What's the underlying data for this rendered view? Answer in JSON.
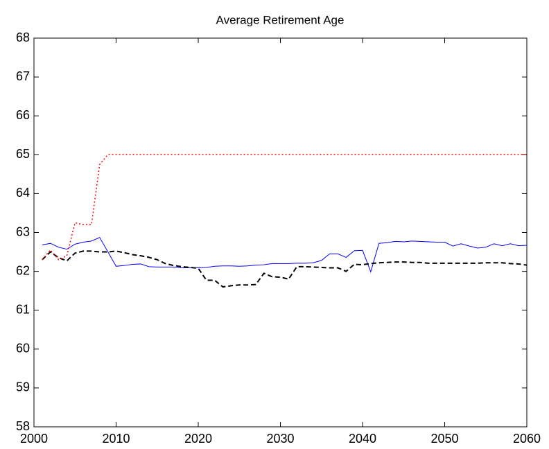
{
  "chart_data": {
    "type": "line",
    "title": "Average Retirement Age",
    "x": [
      2001,
      2002,
      2003,
      2004,
      2005,
      2006,
      2007,
      2008,
      2009,
      2010,
      2011,
      2012,
      2013,
      2014,
      2015,
      2016,
      2017,
      2018,
      2019,
      2020,
      2021,
      2022,
      2023,
      2024,
      2025,
      2026,
      2027,
      2028,
      2029,
      2030,
      2031,
      2032,
      2033,
      2034,
      2035,
      2036,
      2037,
      2038,
      2039,
      2040,
      2041,
      2042,
      2043,
      2044,
      2045,
      2046,
      2047,
      2048,
      2049,
      2050,
      2051,
      2052,
      2053,
      2054,
      2055,
      2056,
      2057,
      2058,
      2059,
      2060
    ],
    "series": [
      {
        "color": "#0000ff",
        "style": "solid",
        "values": [
          62.68,
          62.72,
          62.62,
          62.57,
          62.7,
          62.75,
          62.78,
          62.87,
          62.5,
          62.13,
          62.15,
          62.18,
          62.19,
          62.12,
          62.11,
          62.11,
          62.11,
          62.09,
          62.09,
          62.09,
          62.1,
          62.13,
          62.14,
          62.14,
          62.13,
          62.14,
          62.16,
          62.17,
          62.2,
          62.2,
          62.2,
          62.21,
          62.21,
          62.22,
          62.28,
          62.45,
          62.45,
          62.36,
          62.53,
          62.54,
          61.99,
          62.72,
          62.74,
          62.77,
          62.76,
          62.78,
          62.77,
          62.76,
          62.75,
          62.75,
          62.65,
          62.71,
          62.65,
          62.6,
          62.62,
          62.71,
          62.66,
          62.71,
          62.66,
          62.67
        ]
      },
      {
        "color": "#000000",
        "style": "dashed",
        "values": [
          62.3,
          62.5,
          62.35,
          62.27,
          62.47,
          62.52,
          62.52,
          62.5,
          62.5,
          62.52,
          62.48,
          62.43,
          62.4,
          62.36,
          62.3,
          62.2,
          62.15,
          62.12,
          62.1,
          62.08,
          61.77,
          61.77,
          61.6,
          61.63,
          61.65,
          61.65,
          61.66,
          61.95,
          61.86,
          61.85,
          61.8,
          62.12,
          62.12,
          62.11,
          62.1,
          62.09,
          62.09,
          62.0,
          62.18,
          62.17,
          62.2,
          62.22,
          62.23,
          62.24,
          62.24,
          62.23,
          62.23,
          62.21,
          62.21,
          62.21,
          62.21,
          62.21,
          62.21,
          62.21,
          62.22,
          62.22,
          62.22,
          62.2,
          62.19,
          62.16
        ]
      },
      {
        "color": "#ff0000",
        "style": "dotted",
        "values": [
          62.3,
          62.55,
          62.3,
          62.4,
          63.25,
          63.2,
          63.2,
          64.75,
          65,
          65,
          65,
          65,
          65,
          65,
          65,
          65,
          65,
          65,
          65,
          65,
          65,
          65,
          65,
          65,
          65,
          65,
          65,
          65,
          65,
          65,
          65,
          65,
          65,
          65,
          65,
          65,
          65,
          65,
          65,
          65,
          65,
          65,
          65,
          65,
          65,
          65,
          65,
          65,
          65,
          65,
          65,
          65,
          65,
          65,
          65,
          65,
          65,
          65,
          65,
          65
        ]
      }
    ],
    "xlim": [
      2000,
      2060
    ],
    "ylim": [
      58,
      68
    ],
    "xticks": [
      2000,
      2010,
      2020,
      2030,
      2040,
      2050,
      2060
    ],
    "yticks": [
      58,
      59,
      60,
      61,
      62,
      63,
      64,
      65,
      66,
      67,
      68
    ],
    "grid": false
  }
}
